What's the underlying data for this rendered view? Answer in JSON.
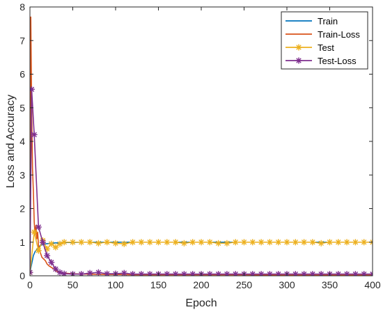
{
  "chart_data": {
    "type": "line",
    "xlabel": "Epoch",
    "ylabel": "Loss and Accuracy",
    "xlim": [
      0,
      400
    ],
    "ylim": [
      0,
      8
    ],
    "xticks": [
      0,
      50,
      100,
      150,
      200,
      250,
      300,
      350,
      400
    ],
    "yticks": [
      0,
      1,
      2,
      3,
      4,
      5,
      6,
      7,
      8
    ],
    "grid": false,
    "legend_position": "top-right",
    "series": [
      {
        "name": "Train",
        "color": "#0072BD",
        "marker": "none",
        "x": [
          0,
          2,
          4,
          6,
          8,
          10,
          12,
          15,
          18,
          22,
          26,
          30,
          35,
          40,
          50,
          60,
          80,
          100,
          150,
          200,
          250,
          300,
          350,
          400
        ],
        "y": [
          0.1,
          0.35,
          0.6,
          0.72,
          0.78,
          0.85,
          0.9,
          0.93,
          0.95,
          0.96,
          0.97,
          0.98,
          0.98,
          0.99,
          0.99,
          1.0,
          1.0,
          1.0,
          1.0,
          1.0,
          1.0,
          1.0,
          1.0,
          1.0
        ]
      },
      {
        "name": "Train-Loss",
        "color": "#D95319",
        "marker": "none",
        "x": [
          0,
          1,
          2,
          3,
          4,
          5,
          6,
          7,
          8,
          9,
          10,
          12,
          14,
          16,
          18,
          20,
          22,
          25,
          28,
          30,
          35,
          40,
          45,
          50,
          60,
          70,
          80,
          100,
          120,
          150,
          200,
          250,
          300,
          350,
          400
        ],
        "y": [
          2.2,
          7.7,
          5.0,
          3.2,
          2.5,
          1.6,
          1.2,
          1.5,
          1.1,
          1.3,
          0.9,
          0.7,
          0.55,
          0.5,
          0.45,
          0.35,
          0.3,
          0.25,
          0.2,
          0.15,
          0.1,
          0.08,
          0.07,
          0.06,
          0.05,
          0.05,
          0.04,
          0.04,
          0.03,
          0.03,
          0.03,
          0.03,
          0.02,
          0.02,
          0.02
        ]
      },
      {
        "name": "Test",
        "color": "#EDB120",
        "marker": "star",
        "x": [
          0,
          5,
          10,
          15,
          20,
          25,
          30,
          35,
          40,
          50,
          60,
          70,
          80,
          90,
          100,
          110,
          120,
          130,
          140,
          150,
          160,
          170,
          180,
          190,
          200,
          210,
          220,
          230,
          240,
          250,
          260,
          270,
          280,
          290,
          300,
          310,
          320,
          330,
          340,
          350,
          360,
          370,
          380,
          390,
          400
        ],
        "y": [
          0.1,
          1.3,
          0.75,
          1.05,
          0.8,
          0.95,
          0.85,
          0.95,
          1.0,
          1.0,
          1.0,
          1.0,
          0.97,
          1.0,
          0.97,
          0.95,
          1.0,
          1.0,
          1.0,
          1.0,
          1.0,
          1.0,
          0.97,
          1.0,
          1.0,
          1.0,
          0.97,
          0.97,
          1.0,
          1.0,
          1.0,
          1.0,
          1.0,
          1.0,
          1.0,
          1.0,
          1.0,
          1.0,
          0.97,
          1.0,
          1.0,
          1.0,
          1.0,
          1.0,
          1.0
        ]
      },
      {
        "name": "Test-Loss",
        "color": "#7E2F8E",
        "marker": "star",
        "x": [
          0,
          2,
          5,
          10,
          15,
          20,
          25,
          30,
          35,
          40,
          50,
          60,
          70,
          80,
          90,
          100,
          110,
          120,
          130,
          140,
          150,
          160,
          170,
          180,
          190,
          200,
          210,
          220,
          230,
          240,
          250,
          260,
          270,
          280,
          290,
          300,
          310,
          320,
          330,
          340,
          350,
          360,
          370,
          380,
          390,
          400
        ],
        "y": [
          0.1,
          5.55,
          4.2,
          1.45,
          1.0,
          0.6,
          0.4,
          0.2,
          0.1,
          0.06,
          0.05,
          0.05,
          0.08,
          0.1,
          0.06,
          0.06,
          0.08,
          0.05,
          0.05,
          0.05,
          0.05,
          0.05,
          0.05,
          0.05,
          0.05,
          0.05,
          0.05,
          0.05,
          0.05,
          0.05,
          0.05,
          0.05,
          0.05,
          0.05,
          0.05,
          0.05,
          0.05,
          0.05,
          0.05,
          0.05,
          0.05,
          0.05,
          0.05,
          0.05,
          0.05,
          0.05
        ]
      }
    ]
  }
}
